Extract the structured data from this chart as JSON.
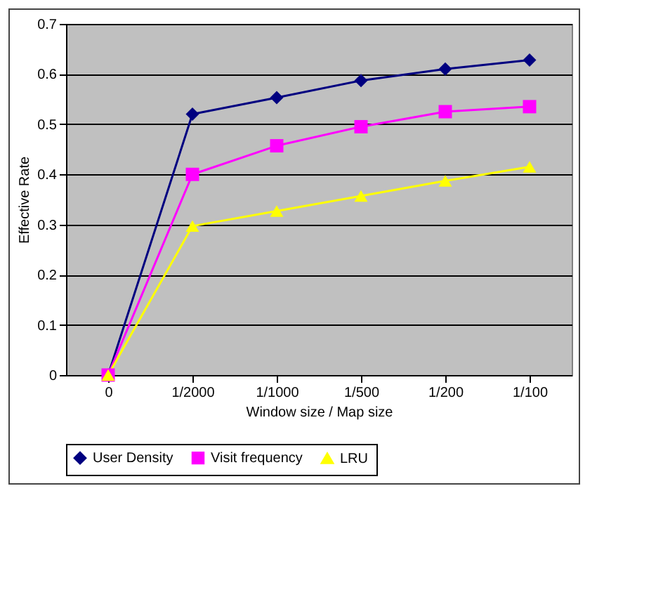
{
  "chart_data": {
    "type": "line",
    "xlabel": "Window size / Map size",
    "ylabel": "Effective Rate",
    "categories": [
      "0",
      "1/2000",
      "1/1000",
      "1/500",
      "1/200",
      "1/100"
    ],
    "series": [
      {
        "name": "User Density",
        "color": "#000080",
        "marker": "diamond",
        "values": [
          0,
          0.52,
          0.553,
          0.587,
          0.61,
          0.628
        ]
      },
      {
        "name": "Visit frequency",
        "color": "#ff00ff",
        "marker": "square",
        "values": [
          0,
          0.4,
          0.457,
          0.495,
          0.525,
          0.535
        ]
      },
      {
        "name": "LRU",
        "color": "#ffff00",
        "marker": "triangle",
        "values": [
          0,
          0.297,
          0.327,
          0.357,
          0.387,
          0.415
        ]
      }
    ],
    "ylim": [
      0,
      0.7
    ],
    "yticks": [
      0,
      0.1,
      0.2,
      0.3,
      0.4,
      0.5,
      0.6,
      0.7
    ],
    "grid": "y",
    "legend": "bottom"
  }
}
